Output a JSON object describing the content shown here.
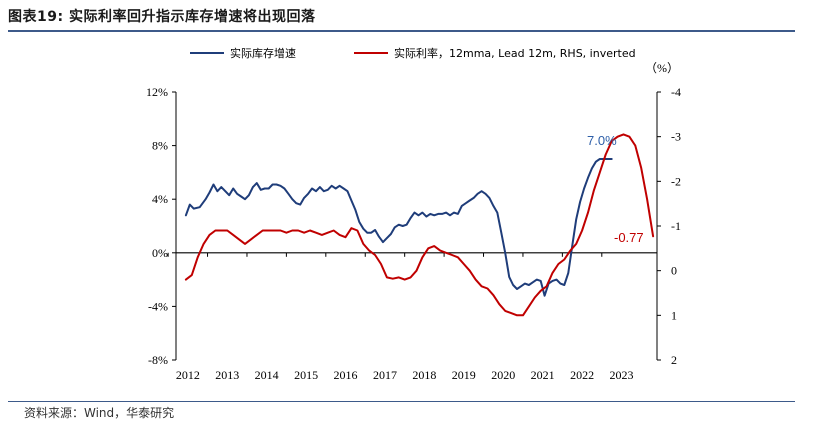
{
  "title": "图表19:  实际利率回升指示库存增速将出现回落",
  "source": "资料来源：Wind，华泰研究",
  "unit_label": "（%）",
  "chart_data": {
    "type": "line",
    "x_ticks": [
      "2012",
      "2013",
      "2014",
      "2015",
      "2016",
      "2017",
      "2018",
      "2019",
      "2020",
      "2021",
      "2022",
      "2023"
    ],
    "y_left": {
      "ticks": [
        "12%",
        "8%",
        "4%",
        "0%",
        "-4%",
        "-8%"
      ],
      "range": [
        -8,
        12
      ]
    },
    "y_right": {
      "ticks": [
        "-4",
        "-3",
        "-2",
        "-1",
        "0",
        "1",
        "2"
      ],
      "range": [
        -4,
        2
      ],
      "inverted": true
    },
    "legend_position": "top",
    "series": [
      {
        "name": "实际库存增速",
        "axis": "left",
        "color": "#1f3d7a",
        "x": [
          2012.0,
          2012.1,
          2012.2,
          2012.35,
          2012.5,
          2012.6,
          2012.7,
          2012.8,
          2012.9,
          2013.0,
          2013.1,
          2013.2,
          2013.3,
          2013.4,
          2013.5,
          2013.6,
          2013.7,
          2013.8,
          2013.9,
          2014.0,
          2014.1,
          2014.2,
          2014.3,
          2014.4,
          2014.5,
          2014.6,
          2014.7,
          2014.8,
          2014.9,
          2015.0,
          2015.1,
          2015.2,
          2015.3,
          2015.4,
          2015.5,
          2015.6,
          2015.7,
          2015.8,
          2015.9,
          2016.0,
          2016.1,
          2016.2,
          2016.3,
          2016.4,
          2016.5,
          2016.6,
          2016.7,
          2016.8,
          2016.9,
          2017.0,
          2017.1,
          2017.2,
          2017.3,
          2017.4,
          2017.5,
          2017.6,
          2017.7,
          2017.8,
          2017.9,
          2018.0,
          2018.1,
          2018.2,
          2018.3,
          2018.4,
          2018.5,
          2018.6,
          2018.7,
          2018.8,
          2018.9,
          2019.0,
          2019.1,
          2019.2,
          2019.3,
          2019.4,
          2019.5,
          2019.6,
          2019.7,
          2019.8,
          2019.9,
          2020.0,
          2020.1,
          2020.2,
          2020.3,
          2020.4,
          2020.5,
          2020.6,
          2020.7,
          2020.8,
          2020.9,
          2021.0,
          2021.1,
          2021.2,
          2021.3,
          2021.4,
          2021.5,
          2021.6,
          2021.7,
          2021.8,
          2021.9,
          2022.0,
          2022.1,
          2022.2,
          2022.3,
          2022.4,
          2022.5,
          2022.6,
          2022.7,
          2022.8
        ],
        "y": [
          2.8,
          3.6,
          3.3,
          3.4,
          4.0,
          4.5,
          5.1,
          4.6,
          4.9,
          4.6,
          4.3,
          4.8,
          4.4,
          4.2,
          4.0,
          4.3,
          4.9,
          5.2,
          4.7,
          4.8,
          4.8,
          5.1,
          5.1,
          5.0,
          4.8,
          4.4,
          4.0,
          3.7,
          3.6,
          4.1,
          4.4,
          4.8,
          4.6,
          4.9,
          4.6,
          4.7,
          5.0,
          4.8,
          5.0,
          4.8,
          4.6,
          3.9,
          3.2,
          2.3,
          1.8,
          1.5,
          1.5,
          1.7,
          1.2,
          0.8,
          1.1,
          1.4,
          1.9,
          2.1,
          2.0,
          2.1,
          2.6,
          3.0,
          2.8,
          3.0,
          2.7,
          2.9,
          2.8,
          2.9,
          2.9,
          3.0,
          2.8,
          3.0,
          2.9,
          3.5,
          3.7,
          3.9,
          4.1,
          4.4,
          4.6,
          4.4,
          4.1,
          3.5,
          3.0,
          1.5,
          0.0,
          -1.8,
          -2.4,
          -2.7,
          -2.5,
          -2.3,
          -2.4,
          -2.2,
          -2.0,
          -2.1,
          -3.2,
          -2.3,
          -2.1,
          -2.0,
          -2.3,
          -2.4,
          -1.5,
          0.5,
          2.5,
          3.8,
          4.8,
          5.6,
          6.3,
          6.8,
          7.0,
          7.0,
          7.0,
          7.0
        ]
      },
      {
        "name": "实际利率，12mma, Lead 12m, RHS, inverted",
        "axis": "right",
        "color": "#c00000",
        "x": [
          2012.0,
          2012.15,
          2012.3,
          2012.45,
          2012.6,
          2012.75,
          2012.9,
          2013.05,
          2013.2,
          2013.35,
          2013.5,
          2013.65,
          2013.8,
          2013.95,
          2014.1,
          2014.25,
          2014.4,
          2014.55,
          2014.7,
          2014.85,
          2015.0,
          2015.15,
          2015.3,
          2015.45,
          2015.6,
          2015.75,
          2015.9,
          2016.05,
          2016.2,
          2016.35,
          2016.5,
          2016.65,
          2016.8,
          2016.95,
          2017.1,
          2017.25,
          2017.4,
          2017.55,
          2017.7,
          2017.85,
          2018.0,
          2018.15,
          2018.3,
          2018.45,
          2018.6,
          2018.75,
          2018.9,
          2019.05,
          2019.2,
          2019.35,
          2019.5,
          2019.65,
          2019.8,
          2019.95,
          2020.1,
          2020.25,
          2020.4,
          2020.55,
          2020.7,
          2020.85,
          2021.0,
          2021.15,
          2021.3,
          2021.45,
          2021.6,
          2021.75,
          2021.9,
          2022.05,
          2022.2,
          2022.35,
          2022.5,
          2022.65,
          2022.8,
          2022.95,
          2023.1,
          2023.25,
          2023.4,
          2023.55,
          2023.7,
          2023.85
        ],
        "y": [
          0.2,
          0.1,
          -0.3,
          -0.6,
          -0.8,
          -0.9,
          -0.9,
          -0.9,
          -0.8,
          -0.7,
          -0.6,
          -0.7,
          -0.8,
          -0.9,
          -0.9,
          -0.9,
          -0.9,
          -0.85,
          -0.9,
          -0.9,
          -0.85,
          -0.9,
          -0.85,
          -0.8,
          -0.85,
          -0.9,
          -0.8,
          -0.75,
          -0.95,
          -0.9,
          -0.6,
          -0.45,
          -0.35,
          -0.15,
          0.15,
          0.18,
          0.15,
          0.2,
          0.15,
          0.0,
          -0.3,
          -0.5,
          -0.55,
          -0.45,
          -0.4,
          -0.35,
          -0.3,
          -0.15,
          0.0,
          0.2,
          0.35,
          0.4,
          0.55,
          0.75,
          0.9,
          0.95,
          1.0,
          1.0,
          0.8,
          0.6,
          0.45,
          0.35,
          0.05,
          -0.15,
          -0.25,
          -0.45,
          -0.6,
          -0.9,
          -1.3,
          -1.8,
          -2.2,
          -2.6,
          -2.9,
          -3.0,
          -3.05,
          -3.0,
          -2.8,
          -2.3,
          -1.6,
          -0.77
        ]
      }
    ],
    "annotations": [
      {
        "text": "7.0%",
        "color": "#2e5fa8"
      },
      {
        "text": "-0.77",
        "color": "#c00000"
      }
    ]
  }
}
